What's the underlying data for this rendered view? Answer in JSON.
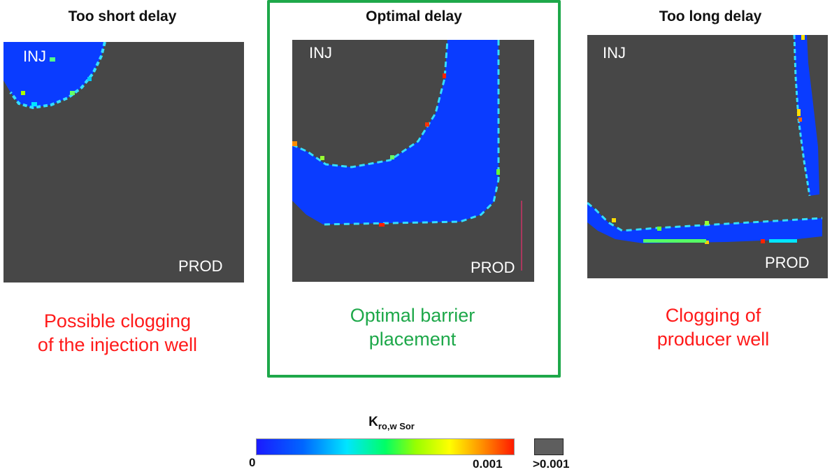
{
  "panels": [
    {
      "title": "Too short delay",
      "inj": "INJ",
      "prod": "PROD",
      "caption_line1": "Possible clogging",
      "caption_line2": "of the injection well"
    },
    {
      "title": "Optimal delay",
      "inj": "INJ",
      "prod": "PROD",
      "caption_line1": "Optimal barrier",
      "caption_line2": "placement"
    },
    {
      "title": "Too long delay",
      "inj": "INJ",
      "prod": "PROD",
      "caption_line1": "Clogging of",
      "caption_line2": "producer well"
    }
  ],
  "legend": {
    "title_main": "K",
    "title_sub": "ro,w Sor",
    "min_label": "0",
    "max_label": "0.001",
    "gray_label": ">0.001",
    "colors": {
      "low": "#1a1aff",
      "high": "#ff1a00",
      "gray": "#5e5e5e"
    }
  },
  "colors": {
    "bad_caption": "#ff1a1a",
    "good_caption": "#1ea84a",
    "frame": "#1ea84a",
    "map_background": "#474747",
    "barrier_blue": "#0a3cff"
  }
}
